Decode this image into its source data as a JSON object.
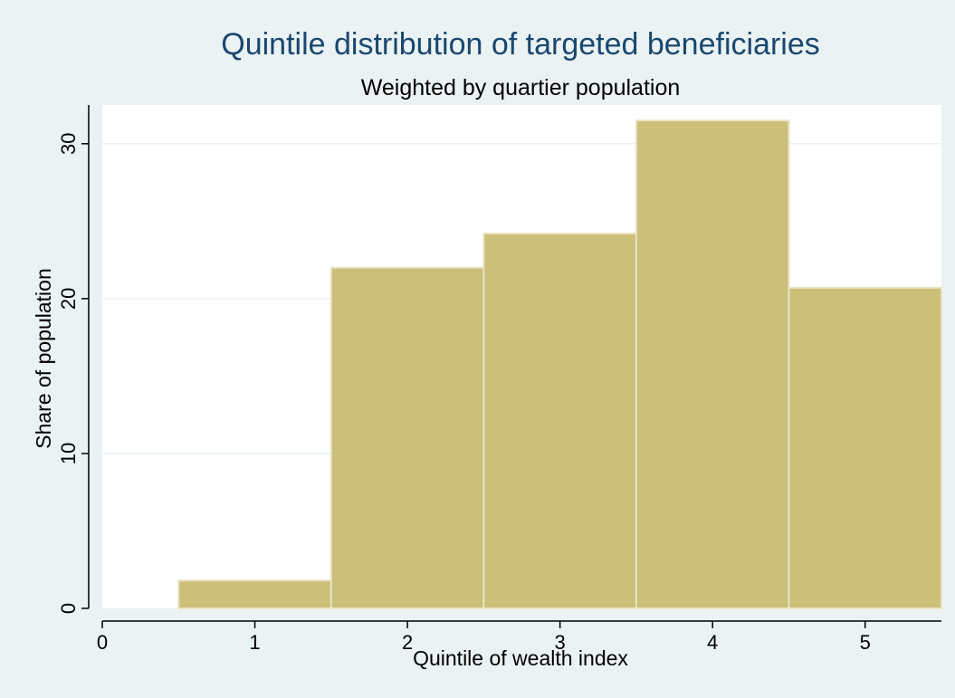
{
  "colors": {
    "figure_background": "#eaf2f3",
    "plot_background": "#ffffff",
    "bar_fill": "#cbbf7a",
    "bar_edge": "#e9e3c2",
    "title": "#1a476f",
    "gridline": "#eaf2f3",
    "axis": "#000000"
  },
  "chart_data": {
    "type": "bar",
    "title": "Quintile distribution of targeted beneficiaries",
    "subtitle": "Weighted by quartier population",
    "xlabel": "Quintile of wealth index",
    "ylabel": "Share of population",
    "categories": [
      1,
      2,
      3,
      4,
      5
    ],
    "values": [
      1.8,
      22.0,
      24.2,
      31.5,
      20.7
    ],
    "bar_width": 1,
    "xlim": [
      0,
      5.5
    ],
    "ylim": [
      0,
      32.5
    ],
    "xticks": [
      0,
      1,
      2,
      3,
      4,
      5
    ],
    "xtick_labels": [
      "0",
      "1",
      "2",
      "3",
      "4",
      "5"
    ],
    "yticks": [
      0,
      10,
      20,
      30
    ],
    "ytick_labels": [
      "0",
      "10",
      "20",
      "30"
    ],
    "grid": true,
    "legend": "none"
  }
}
